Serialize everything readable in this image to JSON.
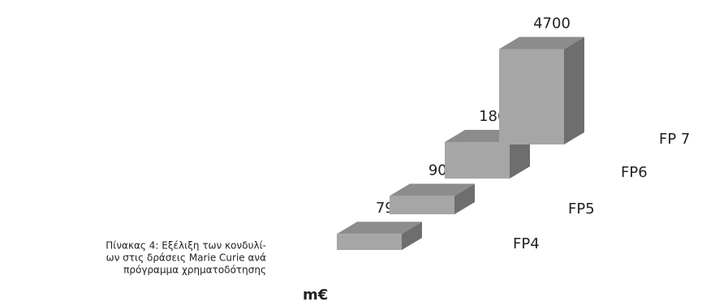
{
  "chart_data": {
    "type": "bar3d",
    "categories": [
      "FP4",
      "FP5",
      "FP6",
      "FP 7"
    ],
    "values": [
      792,
      904,
      1800,
      4700
    ],
    "color": "#a6a6a6",
    "unit_label": "m€",
    "caption": [
      "Πίνακας 4: Εξέλιξη των κονδυλί-",
      "ων στις δράσεις Marie Curie ανά",
      "πρόγραμμα χρηματοδότησης"
    ]
  }
}
